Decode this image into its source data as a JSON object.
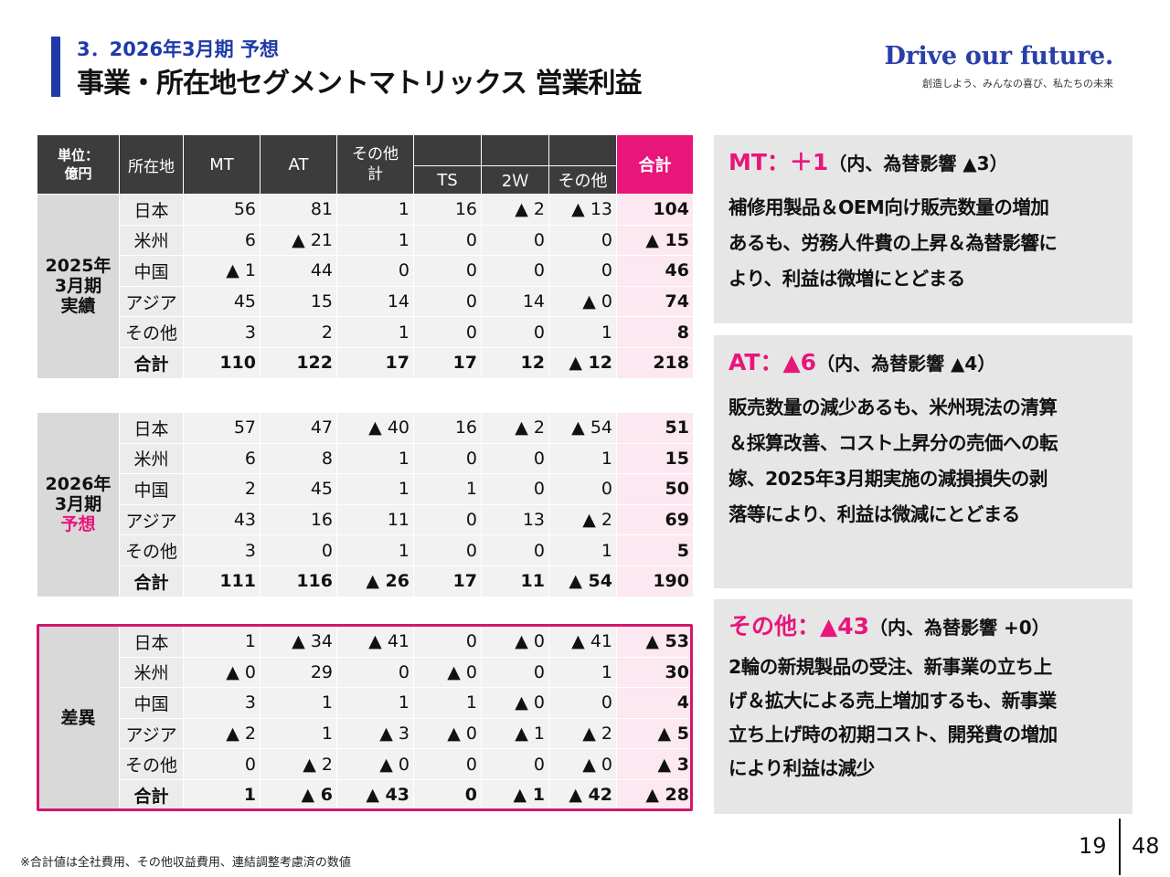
{
  "header": {
    "subtitle": "3．2026年3月期 予想",
    "title": "事業・所在地セグメントマトリックス 営業利益"
  },
  "brand": {
    "tagline": "Drive our future.",
    "sub": "創造しよう、みんなの喜び、私たちの未来"
  },
  "table_header": {
    "unit_line1": "単位：",
    "unit_line2": "億円",
    "location": "所在地",
    "mt": "MT",
    "at": "AT",
    "other_total_line1": "その他",
    "other_total_line2": "計",
    "ts": "TS",
    "tw": "2Ｗ",
    "other": "その他",
    "total": "合計"
  },
  "blocks": [
    {
      "period_line1": "2025年",
      "period_line2": "3月期",
      "period_line3": "実績",
      "rows": [
        {
          "region": "日本",
          "mt": "56",
          "at": "81",
          "oth": "1",
          "ts": "16",
          "tw": "▲ 2",
          "ot": "▲ 13",
          "total": "104"
        },
        {
          "region": "米州",
          "mt": "6",
          "at": "▲ 21",
          "oth": "1",
          "ts": "0",
          "tw": "0",
          "ot": "0",
          "total": "▲ 15"
        },
        {
          "region": "中国",
          "mt": "▲ 1",
          "at": "44",
          "oth": "0",
          "ts": "0",
          "tw": "0",
          "ot": "0",
          "total": "46"
        },
        {
          "region": "アジア",
          "mt": "45",
          "at": "15",
          "oth": "14",
          "ts": "0",
          "tw": "14",
          "ot": "▲ 0",
          "total": "74"
        },
        {
          "region": "その他",
          "mt": "3",
          "at": "2",
          "oth": "1",
          "ts": "0",
          "tw": "0",
          "ot": "1",
          "total": "8"
        },
        {
          "region": "合計",
          "mt": "110",
          "at": "122",
          "oth": "17",
          "ts": "17",
          "tw": "12",
          "ot": "▲ 12",
          "total": "218"
        }
      ]
    },
    {
      "period_line1": "2026年",
      "period_line2": "3月期",
      "period_line3": "予想",
      "rows": [
        {
          "region": "日本",
          "mt": "57",
          "at": "47",
          "oth": "▲ 40",
          "ts": "16",
          "tw": "▲ 2",
          "ot": "▲ 54",
          "total": "51"
        },
        {
          "region": "米州",
          "mt": "6",
          "at": "8",
          "oth": "1",
          "ts": "0",
          "tw": "0",
          "ot": "1",
          "total": "15"
        },
        {
          "region": "中国",
          "mt": "2",
          "at": "45",
          "oth": "1",
          "ts": "1",
          "tw": "0",
          "ot": "0",
          "total": "50"
        },
        {
          "region": "アジア",
          "mt": "43",
          "at": "16",
          "oth": "11",
          "ts": "0",
          "tw": "13",
          "ot": "▲ 2",
          "total": "69"
        },
        {
          "region": "その他",
          "mt": "3",
          "at": "0",
          "oth": "1",
          "ts": "0",
          "tw": "0",
          "ot": "1",
          "total": "5"
        },
        {
          "region": "合計",
          "mt": "111",
          "at": "116",
          "oth": "▲ 26",
          "ts": "17",
          "tw": "11",
          "ot": "▲ 54",
          "total": "190"
        }
      ]
    },
    {
      "period_line1": "差異",
      "rows": [
        {
          "region": "日本",
          "mt": "1",
          "at": "▲ 34",
          "oth": "▲ 41",
          "ts": "0",
          "tw": "▲ 0",
          "ot": "▲ 41",
          "total": "▲ 53"
        },
        {
          "region": "米州",
          "mt": "▲ 0",
          "at": "29",
          "oth": "0",
          "ts": "▲ 0",
          "tw": "0",
          "ot": "1",
          "total": "30"
        },
        {
          "region": "中国",
          "mt": "3",
          "at": "1",
          "oth": "1",
          "ts": "1",
          "tw": "▲ 0",
          "ot": "0",
          "total": "4"
        },
        {
          "region": "アジア",
          "mt": "▲ 2",
          "at": "1",
          "oth": "▲ 3",
          "ts": "▲ 0",
          "tw": "▲ 1",
          "ot": "▲ 2",
          "total": "▲ 5"
        },
        {
          "region": "その他",
          "mt": "0",
          "at": "▲ 2",
          "oth": "▲ 0",
          "ts": "0",
          "tw": "0",
          "ot": "▲ 0",
          "total": "▲ 3"
        },
        {
          "region": "合計",
          "mt": "1",
          "at": "▲ 6",
          "oth": "▲ 43",
          "ts": "0",
          "tw": "▲ 1",
          "ot": "▲ 42",
          "total": "▲ 28"
        }
      ]
    }
  ],
  "panels": [
    {
      "seg": "MT：＋1",
      "note": "（内、為替影響 ▲3）",
      "body": [
        "補修用製品＆OEM向け販売数量の増加",
        "あるも、労務人件費の上昇＆為替影響に",
        "より、利益は微増にとどまる"
      ]
    },
    {
      "seg": "AT：▲6",
      "note": "（内、為替影響 ▲4）",
      "body": [
        "販売数量の減少あるも、米州現法の清算",
        "＆採算改善、コスト上昇分の売価への転",
        "嫁、2025年3月期実施の減損損失の剥",
        "落等により、利益は微減にとどまる"
      ]
    },
    {
      "seg": "その他：▲43",
      "note": "（内、為替影響 +0）",
      "body": [
        "2輪の新規製品の受注、新事業の立ち上",
        "げ＆拡大による売上増加するも、新事業",
        "立ち上げ時の初期コスト、開発費の増加",
        "により利益は減少"
      ]
    }
  ],
  "footer": {
    "note": "※合計値は全社費用、その他収益費用、連結調整考慮済の数値",
    "page": "19",
    "total_pages": "48"
  },
  "colors": {
    "accent_blue": "#1f3aa8",
    "accent_pink": "#e8157a",
    "header_dark": "#3c3c3c"
  }
}
